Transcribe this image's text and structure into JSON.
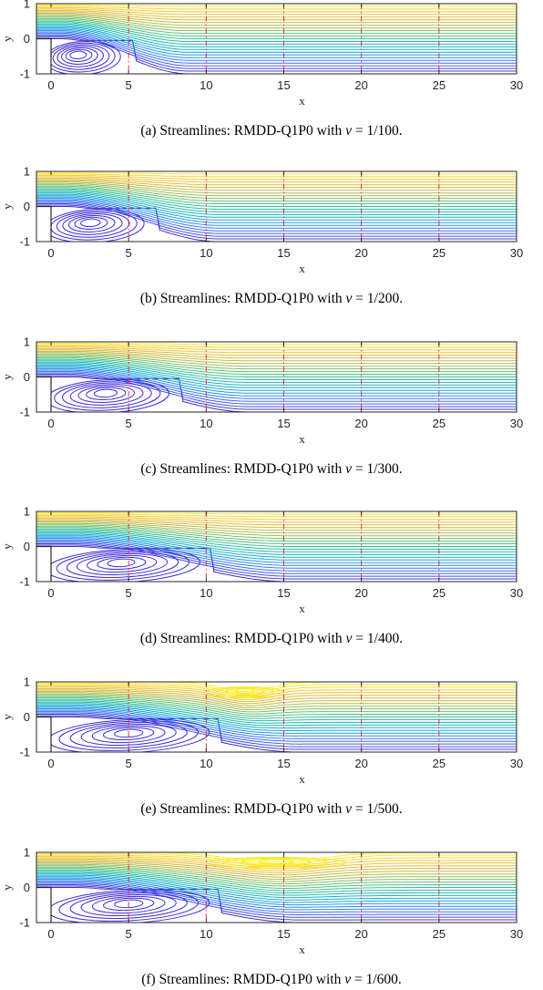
{
  "figure": {
    "panels": [
      {
        "label": "(a)",
        "caption_main": "Streamlines: RMDD-Q1P0 with ",
        "caption_nu": "ν",
        "caption_value": " = 1/100.",
        "chart_data": {
          "type": "contour",
          "title": "",
          "xlabel": "x",
          "ylabel": "y",
          "xlim": [
            0,
            30
          ],
          "ylim": [
            -1,
            1
          ],
          "xticks": [
            0,
            5,
            10,
            15,
            20,
            25,
            30
          ],
          "yticks": [
            -1,
            0,
            1
          ],
          "subdomain_interfaces_x": [
            5,
            10,
            15,
            20,
            25
          ],
          "recirculation_length": 4.5,
          "recirculation_center_x": 1.7,
          "upper_wall_eddy": null
        }
      },
      {
        "label": "(b)",
        "caption_main": "Streamlines: RMDD-Q1P0 with ",
        "caption_nu": "ν",
        "caption_value": " = 1/200.",
        "chart_data": {
          "type": "contour",
          "title": "",
          "xlabel": "x",
          "ylabel": "y",
          "xlim": [
            0,
            30
          ],
          "ylim": [
            -1,
            1
          ],
          "xticks": [
            0,
            5,
            10,
            15,
            20,
            25,
            30
          ],
          "yticks": [
            -1,
            0,
            1
          ],
          "subdomain_interfaces_x": [
            5,
            10,
            15,
            20,
            25
          ],
          "recirculation_length": 6.0,
          "recirculation_center_x": 2.5,
          "upper_wall_eddy": null
        }
      },
      {
        "label": "(c)",
        "caption_main": "Streamlines: RMDD-Q1P0 with ",
        "caption_nu": "ν",
        "caption_value": " = 1/300.",
        "chart_data": {
          "type": "contour",
          "title": "",
          "xlabel": "x",
          "ylabel": "y",
          "xlim": [
            0,
            30
          ],
          "ylim": [
            -1,
            1
          ],
          "xticks": [
            0,
            5,
            10,
            15,
            20,
            25,
            30
          ],
          "yticks": [
            -1,
            0,
            1
          ],
          "subdomain_interfaces_x": [
            5,
            10,
            15,
            20,
            25
          ],
          "recirculation_length": 7.5,
          "recirculation_center_x": 3.5,
          "upper_wall_eddy": null
        }
      },
      {
        "label": "(d)",
        "caption_main": "Streamlines: RMDD-Q1P0 with ",
        "caption_nu": "ν",
        "caption_value": " = 1/400.",
        "chart_data": {
          "type": "contour",
          "title": "",
          "xlabel": "x",
          "ylabel": "y",
          "xlim": [
            0,
            30
          ],
          "ylim": [
            -1,
            1
          ],
          "xticks": [
            0,
            5,
            10,
            15,
            20,
            25,
            30
          ],
          "yticks": [
            -1,
            0,
            1
          ],
          "subdomain_interfaces_x": [
            5,
            10,
            15,
            20,
            25
          ],
          "recirculation_length": 9.5,
          "recirculation_center_x": 4.5,
          "upper_wall_eddy": null
        }
      },
      {
        "label": "(e)",
        "caption_main": "Streamlines: RMDD-Q1P0 with ",
        "caption_nu": "ν",
        "caption_value": " = 1/500.",
        "chart_data": {
          "type": "contour",
          "title": "",
          "xlabel": "x",
          "ylabel": "y",
          "xlim": [
            0,
            30
          ],
          "ylim": [
            -1,
            1
          ],
          "xticks": [
            0,
            5,
            10,
            15,
            20,
            25,
            30
          ],
          "yticks": [
            -1,
            0,
            1
          ],
          "subdomain_interfaces_x": [
            5,
            10,
            15,
            20,
            25
          ],
          "recirculation_length": 10.0,
          "recirculation_center_x": 5.0,
          "upper_wall_eddy": {
            "x_start": 10.5,
            "x_end": 15.5,
            "center_x": 12.5
          }
        }
      },
      {
        "label": "(f)",
        "caption_main": "Streamlines: RMDD-Q1P0 with ",
        "caption_nu": "ν",
        "caption_value": " = 1/600.",
        "chart_data": {
          "type": "contour",
          "title": "",
          "xlabel": "x",
          "ylabel": "y",
          "xlim": [
            0,
            30
          ],
          "ylim": [
            -1,
            1
          ],
          "xticks": [
            0,
            5,
            10,
            15,
            20,
            25,
            30
          ],
          "yticks": [
            -1,
            0,
            1
          ],
          "subdomain_interfaces_x": [
            5,
            10,
            15,
            20,
            25
          ],
          "recirculation_length": 10.0,
          "recirculation_center_x": 5.0,
          "upper_wall_eddy": {
            "x_start": 10.0,
            "x_end": 19.0,
            "center_x": 14.5
          }
        }
      }
    ],
    "colors": {
      "interface_line": "#e0304a",
      "axes": "#262626",
      "recirculation": "#3d2bd6",
      "colormap": [
        "#3e26a8",
        "#4454f4",
        "#2f82fb",
        "#12a9d8",
        "#1ebcae",
        "#4dc380",
        "#9ebd56",
        "#d6b836",
        "#fcc731",
        "#f9fb15"
      ]
    }
  }
}
